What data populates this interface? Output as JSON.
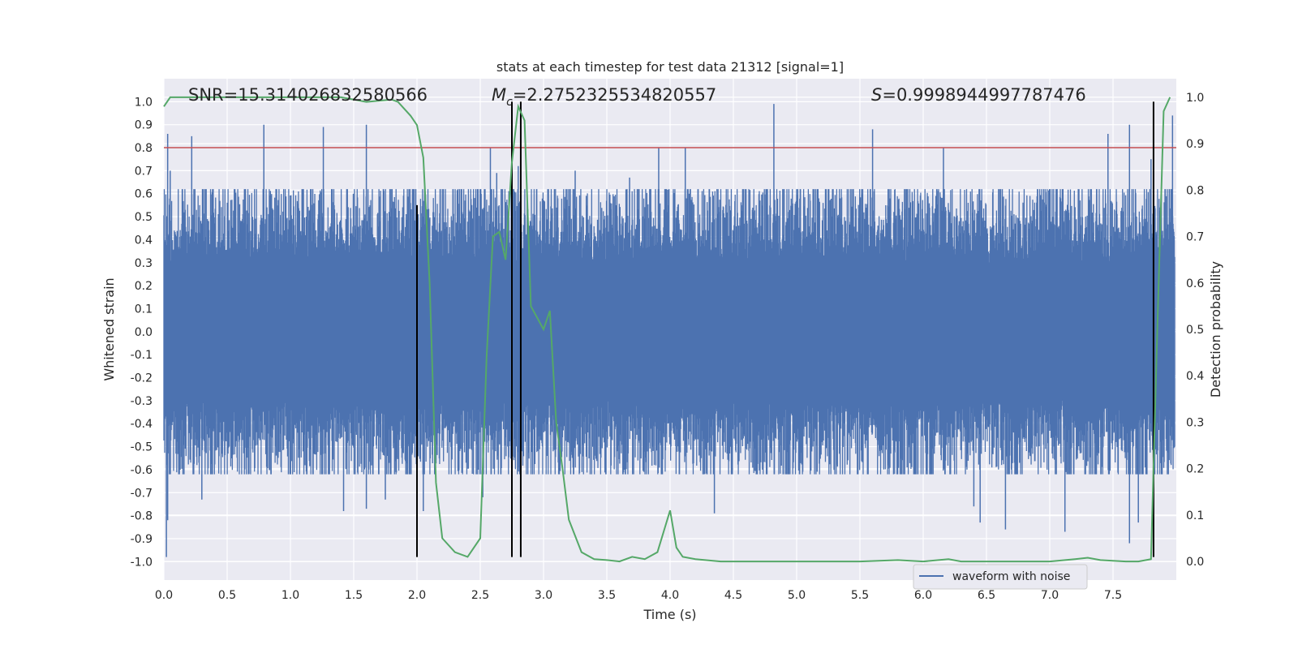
{
  "chart_data": {
    "type": "line",
    "title": "stats at each timestep for test data 21312 [signal=1]",
    "xlabel": "Time (s)",
    "ylabel_left": "Whitened strain",
    "ylabel_right": "Detection probability",
    "xlim": [
      0.0,
      8.0
    ],
    "ylim_left": [
      -1.08,
      1.1
    ],
    "ylim_right": [
      -0.04,
      1.04
    ],
    "x_ticks": [
      "0.0",
      "0.5",
      "1.0",
      "1.5",
      "2.0",
      "2.5",
      "3.0",
      "3.5",
      "4.0",
      "4.5",
      "5.0",
      "5.5",
      "6.0",
      "6.5",
      "7.0",
      "7.5"
    ],
    "y_ticks_left": [
      "1.0",
      "0.9",
      "0.8",
      "0.7",
      "0.6",
      "0.5",
      "0.4",
      "0.3",
      "0.2",
      "0.1",
      "0.0",
      "-0.1",
      "-0.2",
      "-0.3",
      "-0.4",
      "-0.5",
      "-0.6",
      "-0.7",
      "-0.8",
      "-0.9",
      "-1.0"
    ],
    "y_ticks_right": [
      "1.0",
      "0.9",
      "0.8",
      "0.7",
      "0.6",
      "0.5",
      "0.4",
      "0.3",
      "0.2",
      "0.1",
      "0.0"
    ],
    "grid": true,
    "annotations": {
      "snr": "SNR=15.314026832580566",
      "mc_symbol": "M",
      "mc_sub": "c",
      "mc_value": "=2.2752325534820557",
      "s_symbol": "S",
      "s_value": "=0.9998944997787476"
    },
    "series": [
      {
        "name": "waveform with noise",
        "color": "#4c72b0",
        "axis": "left",
        "description": "dense noise band roughly ±0.4 with spikes",
        "spikes_x": [
          0.03,
          0.05,
          0.22,
          0.79,
          1.26,
          1.6,
          2.38,
          2.58,
          2.63,
          2.8,
          3.25,
          3.68,
          3.91,
          4.12,
          4.82,
          5.6,
          6.16,
          7.46,
          7.63,
          7.8,
          7.97
        ],
        "spikes_y": [
          0.86,
          0.7,
          0.85,
          0.9,
          0.89,
          0.9,
          0.57,
          0.8,
          0.69,
          0.72,
          0.7,
          0.67,
          0.8,
          0.8,
          0.99,
          0.88,
          0.8,
          0.86,
          0.9,
          0.75,
          0.94
        ],
        "dips_x": [
          0.02,
          0.3,
          1.42,
          1.6,
          1.75,
          2.05,
          2.52,
          6.65,
          7.12,
          7.63,
          0.03,
          4.35,
          6.45,
          6.4,
          7.7
        ],
        "dips_y": [
          -0.98,
          -0.73,
          -0.78,
          -0.77,
          -0.73,
          -0.78,
          -0.72,
          -0.86,
          -0.87,
          -0.92,
          -0.82,
          -0.79,
          -0.83,
          -0.76,
          -0.83
        ]
      },
      {
        "name": "detection probability",
        "color": "#55a868",
        "axis": "right",
        "x": [
          0.0,
          0.05,
          0.2,
          0.4,
          0.6,
          0.8,
          1.0,
          1.2,
          1.4,
          1.6,
          1.8,
          1.85,
          1.95,
          2.0,
          2.05,
          2.1,
          2.15,
          2.2,
          2.3,
          2.4,
          2.5,
          2.55,
          2.6,
          2.65,
          2.7,
          2.75,
          2.8,
          2.85,
          2.9,
          3.0,
          3.05,
          3.1,
          3.15,
          3.2,
          3.3,
          3.4,
          3.5,
          3.6,
          3.7,
          3.8,
          3.9,
          4.0,
          4.05,
          4.1,
          4.2,
          4.4,
          4.6,
          5.0,
          5.5,
          5.8,
          6.0,
          6.2,
          6.3,
          6.5,
          7.0,
          7.2,
          7.3,
          7.4,
          7.6,
          7.7,
          7.8,
          7.85,
          7.9,
          7.95
        ],
        "y": [
          0.98,
          1.0,
          1.0,
          1.0,
          1.0,
          1.0,
          1.0,
          1.0,
          1.0,
          0.99,
          0.995,
          0.99,
          0.96,
          0.94,
          0.87,
          0.6,
          0.17,
          0.05,
          0.02,
          0.01,
          0.05,
          0.44,
          0.7,
          0.71,
          0.65,
          0.86,
          0.98,
          0.95,
          0.55,
          0.5,
          0.54,
          0.3,
          0.2,
          0.09,
          0.02,
          0.005,
          0.003,
          0.0,
          0.01,
          0.005,
          0.02,
          0.11,
          0.03,
          0.01,
          0.005,
          0.0,
          0.0,
          0.0,
          0.0,
          0.003,
          0.0,
          0.005,
          0.0,
          0.0,
          0.0,
          0.005,
          0.008,
          0.003,
          0.0,
          0.0,
          0.005,
          0.5,
          0.97,
          1.0
        ]
      },
      {
        "name": "threshold",
        "color": "#c44e52",
        "axis": "left",
        "y": 0.8
      }
    ],
    "vlines": {
      "color": "#000000",
      "x": [
        2.0,
        2.75,
        2.82,
        7.82
      ],
      "ymin": [
        -0.98,
        -0.98,
        -0.98,
        -0.98
      ],
      "ymax": [
        0.55,
        1.0,
        1.0,
        1.0
      ]
    },
    "legend": {
      "position": "lower-right",
      "entries": [
        "waveform with noise"
      ]
    }
  }
}
